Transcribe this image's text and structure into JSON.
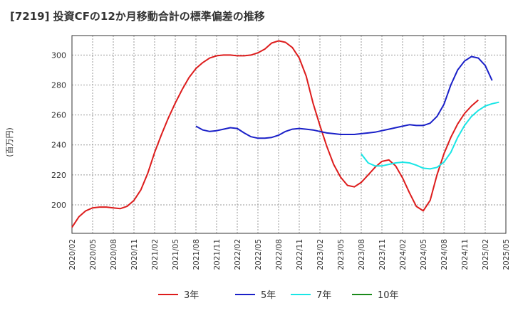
{
  "chart_data": {
    "type": "line",
    "title": "[7219]  投資CFの12か月移動合計の標準偏差の推移",
    "ylabel": "(百万円)",
    "xlabel": "",
    "ylim": [
      181,
      313
    ],
    "yticks": [
      200,
      220,
      240,
      260,
      280,
      300
    ],
    "xticks": [
      "2020/02",
      "2020/05",
      "2020/08",
      "2020/11",
      "2021/02",
      "2021/05",
      "2021/08",
      "2021/11",
      "2022/02",
      "2022/05",
      "2022/08",
      "2022/11",
      "2023/02",
      "2023/05",
      "2023/08",
      "2023/11",
      "2024/02",
      "2024/05",
      "2024/08",
      "2024/11",
      "2025/02",
      "2025/05"
    ],
    "grid": true,
    "legend_position": "bottom",
    "series": [
      {
        "name": "3年",
        "color": "#dd1c1c",
        "start": "2020/02",
        "values": [
          185,
          192,
          196,
          198,
          198.5,
          198.5,
          198,
          197.5,
          199,
          203,
          210,
          221,
          235,
          247,
          258,
          268,
          277,
          285,
          291,
          295,
          298,
          299.5,
          300,
          300,
          299.5,
          299.5,
          300,
          301.5,
          304,
          308,
          309.5,
          308.5,
          305,
          298,
          286,
          268,
          253,
          239,
          227,
          218.5,
          213,
          212,
          215,
          220,
          225,
          229,
          230,
          226,
          218,
          208,
          199,
          196,
          203,
          220,
          234,
          245,
          254,
          261,
          266,
          270
        ]
      },
      {
        "name": "5年",
        "color": "#1a20c8",
        "start": "2021/08",
        "values": [
          252.5,
          250,
          249,
          249.5,
          250.5,
          251.5,
          251,
          248,
          245.5,
          244.5,
          244.5,
          245,
          246.5,
          249,
          250.5,
          251,
          250.5,
          250,
          249,
          248,
          247.5,
          247,
          247,
          247,
          247.5,
          248,
          248.5,
          249.5,
          250.5,
          251.5,
          252.5,
          253.5,
          253,
          253,
          254.5,
          259,
          267,
          280,
          290,
          296,
          299,
          298,
          293,
          283
        ]
      },
      {
        "name": "7年",
        "color": "#19e6e6",
        "start": "2023/08",
        "values": [
          234,
          228,
          226,
          226,
          227,
          228,
          228.5,
          228,
          226.5,
          224.5,
          224,
          225,
          228.5,
          235,
          245,
          253,
          259,
          263,
          266,
          267.5,
          268.5
        ]
      },
      {
        "name": "10年",
        "color": "#1a8a1a",
        "start": "2025/02",
        "values": []
      }
    ]
  }
}
